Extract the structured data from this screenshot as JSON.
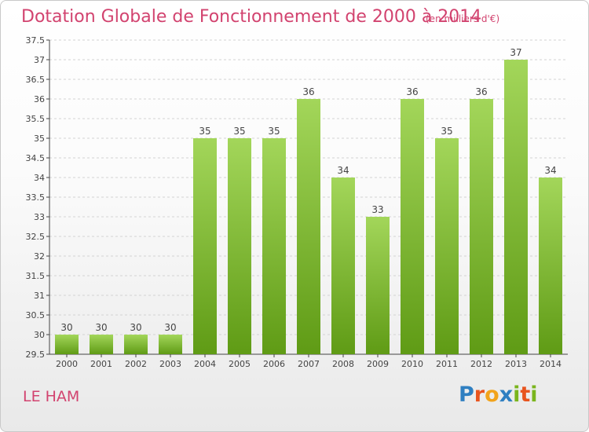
{
  "header": {
    "title": "Dotation Globale de Fonctionnement de 2000 à 2014",
    "unit_note": "(en milliers d'€)"
  },
  "footer": {
    "location": "LE HAM",
    "logo_text": "Proxiti",
    "logo_letters": [
      {
        "ch": "P",
        "color": "#2f7fc1"
      },
      {
        "ch": "r",
        "color": "#e8541e"
      },
      {
        "ch": "o",
        "color": "#f2a31b"
      },
      {
        "ch": "x",
        "color": "#2f7fc1"
      },
      {
        "ch": "i",
        "color": "#7ab51d"
      },
      {
        "ch": "t",
        "color": "#e8541e"
      },
      {
        "ch": "i",
        "color": "#7ab51d"
      }
    ]
  },
  "colors": {
    "title": "#d2436f",
    "bar_light": "#a3d65a",
    "bar_dark": "#5f9b15",
    "grid": "#d3d3d3",
    "axis": "#444444"
  },
  "chart_data": {
    "type": "bar",
    "title": "Dotation Globale de Fonctionnement de 2000 à 2014",
    "subtitle": "(en milliers d'€)",
    "xlabel": "",
    "ylabel": "",
    "categories": [
      "2000",
      "2001",
      "2002",
      "2003",
      "2004",
      "2005",
      "2006",
      "2007",
      "2008",
      "2009",
      "2010",
      "2011",
      "2012",
      "2013",
      "2014"
    ],
    "values": [
      30,
      30,
      30,
      30,
      35,
      35,
      35,
      36,
      34,
      33,
      36,
      35,
      36,
      37,
      34
    ],
    "ylim": [
      29.5,
      37.5
    ],
    "yticks": [
      "29.5",
      "30",
      "30.5",
      "31",
      "31.5",
      "32",
      "32.5",
      "33",
      "33.5",
      "34",
      "34.5",
      "35",
      "35.5",
      "36",
      "36.5",
      "37",
      "37.5"
    ],
    "grid": "horizontal dashed",
    "legend": "none"
  }
}
